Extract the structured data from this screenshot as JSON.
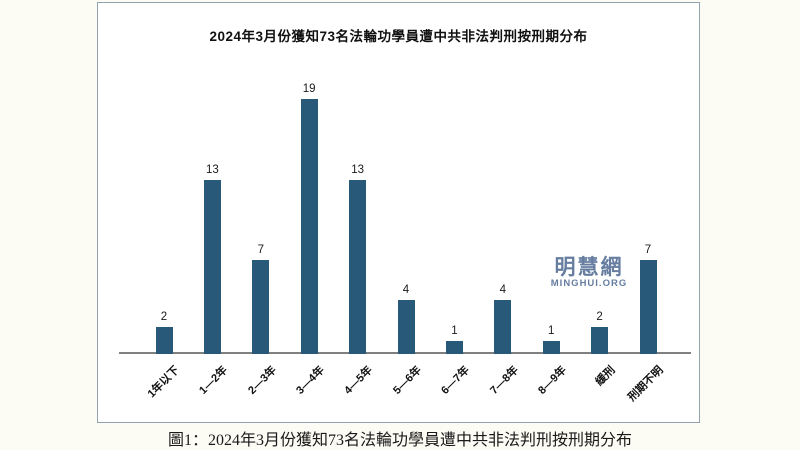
{
  "page": {
    "background": "#fcfbf4",
    "caption": "圖1：2024年3月份獲知73名法輪功學員遭中共非法判刑按刑期分布"
  },
  "watermark": {
    "cjk": "明慧網",
    "latin": "MINGHUI.ORG",
    "color": "#667da0"
  },
  "chart_data": {
    "type": "bar",
    "title": "2024年3月份獲知73名法輪功學員遭中共非法判刑按刑期分布",
    "categories": [
      "1年以下",
      "1—2年",
      "2—3年",
      "3—4年",
      "4—5年",
      "5—6年",
      "6—7年",
      "7—8年",
      "8—9年",
      "緩刑",
      "刑期不明"
    ],
    "values": [
      2,
      13,
      7,
      19,
      13,
      4,
      1,
      4,
      1,
      2,
      7
    ],
    "total": 73,
    "bar_color": "#295979",
    "axis_color": "#808080",
    "ylim": [
      0,
      20
    ],
    "grid": false,
    "value_labels_shown": true,
    "xlabel": "",
    "ylabel": "",
    "legend": "none",
    "x_tick_rotation_deg": 45
  }
}
